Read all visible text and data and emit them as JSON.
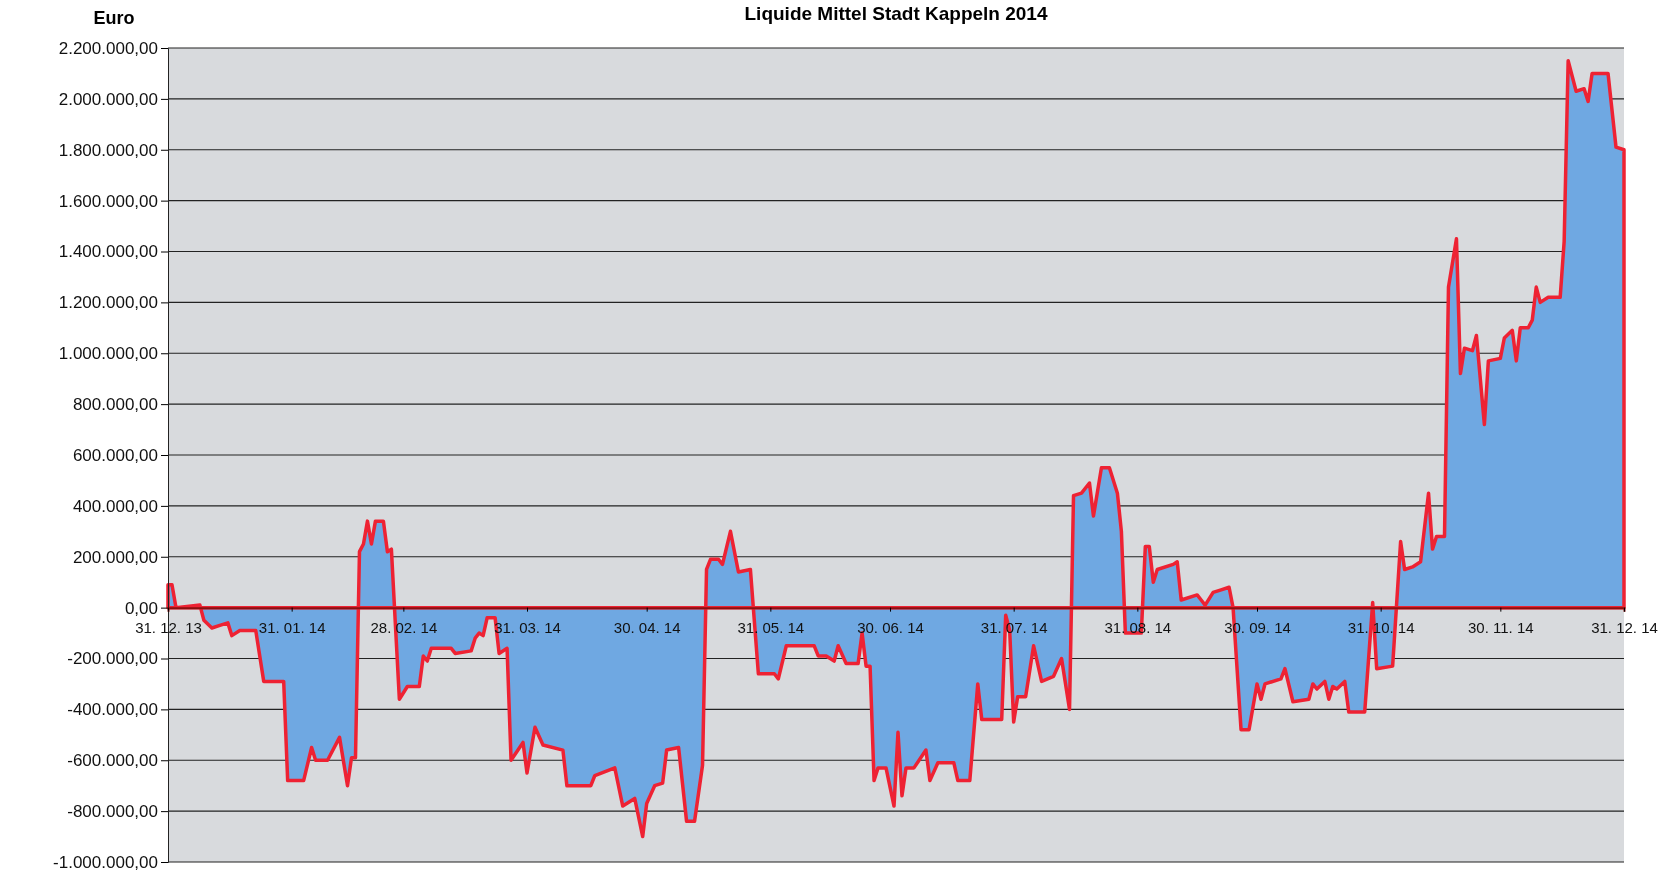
{
  "chart_data": {
    "type": "area",
    "title": "Liquide Mittel Stadt Kappeln 2014",
    "ylabel": "Euro",
    "x": [
      "2013-12-31",
      "2014-01-01",
      "2014-01-02",
      "2014-01-08",
      "2014-01-09",
      "2014-01-11",
      "2014-01-13",
      "2014-01-15",
      "2014-01-16",
      "2014-01-18",
      "2014-01-22",
      "2014-01-24",
      "2014-01-29",
      "2014-01-30",
      "2014-02-03",
      "2014-02-05",
      "2014-02-06",
      "2014-02-09",
      "2014-02-12",
      "2014-02-14",
      "2014-02-15",
      "2014-02-16",
      "2014-02-17",
      "2014-02-18",
      "2014-02-19",
      "2014-02-20",
      "2014-02-21",
      "2014-02-23",
      "2014-02-24",
      "2014-02-25",
      "2014-02-27",
      "2014-03-01",
      "2014-03-04",
      "2014-03-05",
      "2014-03-06",
      "2014-03-07",
      "2014-03-12",
      "2014-03-13",
      "2014-03-17",
      "2014-03-18",
      "2014-03-19",
      "2014-03-20",
      "2014-03-21",
      "2014-03-23",
      "2014-03-24",
      "2014-03-26",
      "2014-03-27",
      "2014-03-30",
      "2014-03-31",
      "2014-04-02",
      "2014-04-04",
      "2014-04-09",
      "2014-04-10",
      "2014-04-16",
      "2014-04-17",
      "2014-04-22",
      "2014-04-24",
      "2014-04-27",
      "2014-04-29",
      "2014-04-30",
      "2014-05-02",
      "2014-05-04",
      "2014-05-05",
      "2014-05-08",
      "2014-05-10",
      "2014-05-12",
      "2014-05-14",
      "2014-05-15",
      "2014-05-16",
      "2014-05-18",
      "2014-05-19",
      "2014-05-21",
      "2014-05-23",
      "2014-05-26",
      "2014-05-28",
      "2014-06-01",
      "2014-06-02",
      "2014-06-04",
      "2014-06-05",
      "2014-06-11",
      "2014-06-12",
      "2014-06-14",
      "2014-06-16",
      "2014-06-17",
      "2014-06-19",
      "2014-06-22",
      "2014-06-23",
      "2014-06-24",
      "2014-06-25",
      "2014-06-26",
      "2014-06-27",
      "2014-06-29",
      "2014-07-01",
      "2014-07-02",
      "2014-07-03",
      "2014-07-04",
      "2014-07-06",
      "2014-07-09",
      "2014-07-10",
      "2014-07-12",
      "2014-07-16",
      "2014-07-17",
      "2014-07-20",
      "2014-07-22",
      "2014-07-23",
      "2014-07-28",
      "2014-07-29",
      "2014-07-30",
      "2014-07-31",
      "2014-08-01",
      "2014-08-03",
      "2014-08-05",
      "2014-08-07",
      "2014-08-10",
      "2014-08-12",
      "2014-08-14",
      "2014-08-15",
      "2014-08-17",
      "2014-08-19",
      "2014-08-20",
      "2014-08-22",
      "2014-08-24",
      "2014-08-26",
      "2014-08-27",
      "2014-08-28",
      "2014-09-01",
      "2014-09-02",
      "2014-09-03",
      "2014-09-04",
      "2014-09-05",
      "2014-09-09",
      "2014-09-10",
      "2014-09-11",
      "2014-09-15",
      "2014-09-16",
      "2014-09-17",
      "2014-09-19",
      "2014-09-21",
      "2014-09-23",
      "2014-09-24",
      "2014-09-26",
      "2014-09-28",
      "2014-09-30",
      "2014-10-01",
      "2014-10-02",
      "2014-10-06",
      "2014-10-07",
      "2014-10-09",
      "2014-10-13",
      "2014-10-14",
      "2014-10-15",
      "2014-10-17",
      "2014-10-18",
      "2014-10-19",
      "2014-10-20",
      "2014-10-22",
      "2014-10-23",
      "2014-10-27",
      "2014-10-29",
      "2014-10-30",
      "2014-11-03",
      "2014-11-05",
      "2014-11-06",
      "2014-11-08",
      "2014-11-10",
      "2014-11-12",
      "2014-11-13",
      "2014-11-14",
      "2014-11-16",
      "2014-11-17",
      "2014-11-19",
      "2014-11-20",
      "2014-11-21",
      "2014-11-23",
      "2014-11-24",
      "2014-11-26",
      "2014-11-27",
      "2014-11-30",
      "2014-12-01",
      "2014-12-03",
      "2014-12-04",
      "2014-12-05",
      "2014-12-07",
      "2014-12-08",
      "2014-12-09",
      "2014-12-10",
      "2014-12-12",
      "2014-12-15",
      "2014-12-16",
      "2014-12-17",
      "2014-12-19",
      "2014-12-21",
      "2014-12-22",
      "2014-12-23",
      "2014-12-27",
      "2014-12-29",
      "2014-12-31"
    ],
    "series": [
      {
        "color": "#6fa8e2",
        "values": [
          90000,
          90000,
          0,
          10000,
          -50000,
          -80000,
          -70000,
          -60000,
          -110000,
          -90000,
          -90000,
          -290000,
          -290000,
          -680000,
          -680000,
          -550000,
          -600000,
          -600000,
          -510000,
          -700000,
          -590000,
          -590000,
          220000,
          250000,
          340000,
          250000,
          340000,
          340000,
          220000,
          230000,
          -360000,
          -310000,
          -310000,
          -190000,
          -210000,
          -160000,
          -160000,
          -180000,
          -170000,
          -120000,
          -100000,
          -110000,
          -40000,
          -40000,
          -180000,
          -160000,
          -600000,
          -530000,
          -650000,
          -470000,
          -540000,
          -560000,
          -700000,
          -700000,
          -660000,
          -630000,
          -780000,
          -750000,
          -900000,
          -770000,
          -700000,
          -690000,
          -560000,
          -550000,
          -840000,
          -840000,
          -620000,
          150000,
          190000,
          190000,
          170000,
          300000,
          140000,
          150000,
          -260000,
          -260000,
          -280000,
          -150000,
          -150000,
          -150000,
          -190000,
          -190000,
          -210000,
          -150000,
          -220000,
          -220000,
          -100000,
          -230000,
          -230000,
          -680000,
          -630000,
          -630000,
          -780000,
          -490000,
          -740000,
          -630000,
          -630000,
          -560000,
          -680000,
          -610000,
          -610000,
          -680000,
          -680000,
          -300000,
          -440000,
          -440000,
          -30000,
          -90000,
          -450000,
          -350000,
          -350000,
          -150000,
          -290000,
          -270000,
          -200000,
          -400000,
          440000,
          450000,
          490000,
          360000,
          550000,
          550000,
          450000,
          300000,
          -100000,
          -100000,
          240000,
          240000,
          100000,
          150000,
          170000,
          180000,
          30000,
          50000,
          30000,
          10000,
          60000,
          70000,
          80000,
          0,
          -480000,
          -480000,
          -300000,
          -360000,
          -300000,
          -280000,
          -240000,
          -370000,
          -360000,
          -300000,
          -320000,
          -290000,
          -360000,
          -310000,
          -320000,
          -290000,
          -410000,
          -410000,
          20000,
          -240000,
          -230000,
          260000,
          150000,
          160000,
          180000,
          450000,
          230000,
          280000,
          280000,
          1260000,
          1450000,
          920000,
          1020000,
          1010000,
          1070000,
          720000,
          970000,
          980000,
          1060000,
          1090000,
          970000,
          1100000,
          1100000,
          1130000,
          1260000,
          1200000,
          1220000,
          1220000,
          1440000,
          2150000,
          2030000,
          2040000,
          1990000,
          2100000,
          2100000,
          1810000,
          1800000
        ]
      }
    ],
    "xlim": [
      "2013-12-31",
      "2014-12-31"
    ],
    "xticks": [
      {
        "value": "2013-12-31",
        "label": "31. 12. 13"
      },
      {
        "value": "2014-01-31",
        "label": "31. 01. 14"
      },
      {
        "value": "2014-02-28",
        "label": "28. 02. 14"
      },
      {
        "value": "2014-03-31",
        "label": "31. 03. 14"
      },
      {
        "value": "2014-04-30",
        "label": "30. 04. 14"
      },
      {
        "value": "2014-05-31",
        "label": "31. 05. 14"
      },
      {
        "value": "2014-06-30",
        "label": "30. 06. 14"
      },
      {
        "value": "2014-07-31",
        "label": "31. 07. 14"
      },
      {
        "value": "2014-08-31",
        "label": "31. 08. 14"
      },
      {
        "value": "2014-09-30",
        "label": "30. 09. 14"
      },
      {
        "value": "2014-10-31",
        "label": "31. 10. 14"
      },
      {
        "value": "2014-11-30",
        "label": "30. 11. 14"
      },
      {
        "value": "2014-12-31",
        "label": "31. 12. 14"
      }
    ],
    "ylim": [
      -1000000,
      2200000
    ],
    "yticks": [
      {
        "value": -1000000,
        "label": "-1.000.000,00"
      },
      {
        "value": -800000,
        "label": "-800.000,00"
      },
      {
        "value": -600000,
        "label": "-600.000,00"
      },
      {
        "value": -400000,
        "label": "-400.000,00"
      },
      {
        "value": -200000,
        "label": "-200.000,00"
      },
      {
        "value": 0,
        "label": "0,00"
      },
      {
        "value": 200000,
        "label": "200.000,00"
      },
      {
        "value": 400000,
        "label": "400.000,00"
      },
      {
        "value": 600000,
        "label": "600.000,00"
      },
      {
        "value": 800000,
        "label": "800.000,00"
      },
      {
        "value": 1000000,
        "label": "1.000.000,00"
      },
      {
        "value": 1200000,
        "label": "1.200.000,00"
      },
      {
        "value": 1400000,
        "label": "1.400.000,00"
      },
      {
        "value": 1600000,
        "label": "1.600.000,00"
      },
      {
        "value": 1800000,
        "label": "1.800.000,00"
      },
      {
        "value": 2000000,
        "label": "2.000.000,00"
      },
      {
        "value": 2200000,
        "label": "2.200.000,00"
      }
    ],
    "grid": "y"
  }
}
